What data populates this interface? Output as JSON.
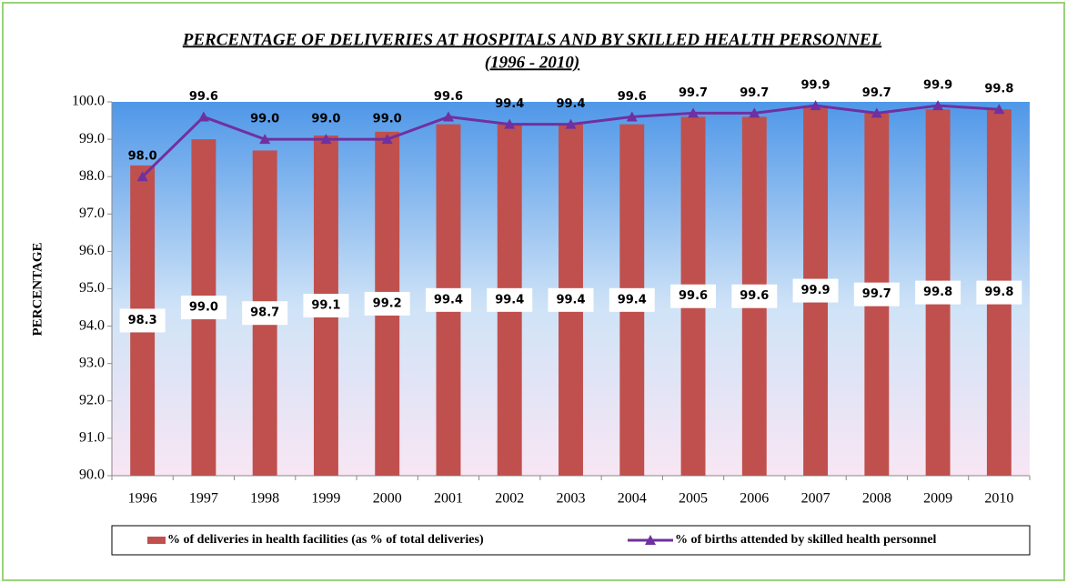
{
  "chart_data": {
    "type": "bar+line",
    "title": "PERCENTAGE OF DELIVERIES AT HOSPITALS AND BY SKILLED HEALTH PERSONNEL",
    "subtitle": "(1996 - 2010)",
    "y_label": "PERCENTAGE",
    "categories": [
      "1996",
      "1997",
      "1998",
      "1999",
      "2000",
      "2001",
      "2002",
      "2003",
      "2004",
      "2005",
      "2006",
      "2007",
      "2008",
      "2009",
      "2010"
    ],
    "series": [
      {
        "name": "% of deliveries in health facilities (as % of total deliveries)",
        "type": "bar",
        "color": "#c0504d",
        "values": [
          98.3,
          99.0,
          98.7,
          99.1,
          99.2,
          99.4,
          99.4,
          99.4,
          99.4,
          99.6,
          99.6,
          99.9,
          99.7,
          99.8,
          99.8
        ],
        "value_labels": [
          "98.3",
          "99.0",
          "98.7",
          "99.1",
          "99.2",
          "99.4",
          "99.4",
          "99.4",
          "99.4",
          "99.6",
          "99.6",
          "99.9",
          "99.7",
          "99.8",
          "99.8"
        ]
      },
      {
        "name": "% of births attended by skilled health personnel",
        "type": "line",
        "color": "#7030a0",
        "values": [
          98.0,
          99.6,
          99.0,
          99.0,
          99.0,
          99.6,
          99.4,
          99.4,
          99.6,
          99.7,
          99.7,
          99.9,
          99.7,
          99.9,
          99.8
        ],
        "value_labels": [
          "98.0",
          "99.6",
          "99.0",
          "99.0",
          "99.0",
          "99.6",
          "99.4",
          "99.4",
          "99.6",
          "99.7",
          "99.7",
          "99.9",
          "99.7",
          "99.9",
          "99.8"
        ]
      }
    ],
    "ylim": [
      90,
      100
    ],
    "yticks": [
      {
        "value": 90,
        "label": "90.0"
      },
      {
        "value": 91,
        "label": "91.0"
      },
      {
        "value": 92,
        "label": "92.0"
      },
      {
        "value": 93,
        "label": "93.0"
      },
      {
        "value": 94,
        "label": "94.0"
      },
      {
        "value": 95,
        "label": "95.0"
      },
      {
        "value": 96,
        "label": "96.0"
      },
      {
        "value": 97,
        "label": "97.0"
      },
      {
        "value": 98,
        "label": "98.0"
      },
      {
        "value": 99,
        "label": "99.0"
      },
      {
        "value": 100,
        "label": "100.0"
      }
    ],
    "legend": "bottom"
  }
}
